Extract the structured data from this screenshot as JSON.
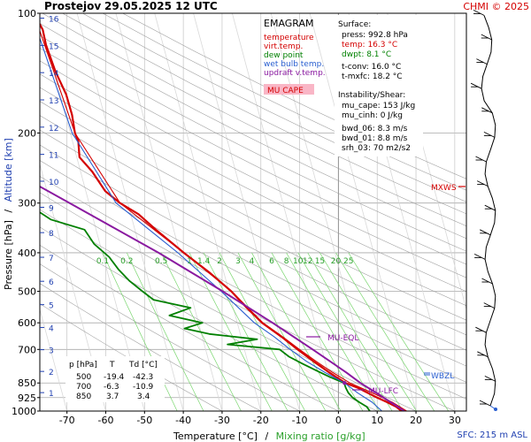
{
  "header": {
    "station": "Prostejov",
    "datetime": "29.05.2025 12 UTC",
    "copyright": "CHMI © 2025"
  },
  "axes": {
    "ylabel_pressure": "Pressure [hPa]",
    "ylabel_sep": "/",
    "ylabel_alt": "Altitude [km]",
    "xlabel_temp": "Temperature [°C]",
    "xlabel_sep": "/",
    "xlabel_mix": "Mixing ratio [g/kg]",
    "sfc_note": "SFC: 215 m ASL"
  },
  "legend": {
    "title": "EMAGRAM",
    "items": [
      {
        "label": "temperature",
        "color": "#d40000"
      },
      {
        "label": "virt.temp.",
        "color": "#d40000"
      },
      {
        "label": "dew point",
        "color": "#008000"
      },
      {
        "label": "wet bulb temp.",
        "color": "#2a5fd0"
      },
      {
        "label": "updraft v.temp.",
        "color": "#8a1aa0"
      }
    ],
    "mu_cape_label": "MU CAPE",
    "mu_cape_bg": "#f9b6c6"
  },
  "info": {
    "surface_title": "Surface:",
    "press": "press: 992.8 hPa",
    "temp": "temp: 16.3 °C",
    "dwpt": "dwpt: 8.1 °C",
    "tconv": "t-conv: 16.0 °C",
    "tmxfc": "t-mxfc: 18.2 °C",
    "instab_title": "Instability/Shear:",
    "mu_cape": "mu_cape: 153 J/kg",
    "mu_cinh": "mu_cinh: 0 J/kg",
    "bwd06": "bwd_06: 8.3 m/s",
    "bwd01": "bwd_01: 8.8 m/s",
    "srh03": "srh_03: 70 m2/s2"
  },
  "levels_table": {
    "headers": [
      "p [hPa]",
      "T",
      "Td [°C]"
    ],
    "rows": [
      [
        "500",
        "-19.4",
        "-42.3"
      ],
      [
        "700",
        "-6.3",
        "-10.9"
      ],
      [
        "850",
        "3.7",
        "3.4"
      ]
    ]
  },
  "annotations": {
    "mxws": "MXWS",
    "mu_eql": "MU-EQL",
    "mu_lfc": "MU-LFC",
    "wbzl": "WBZL"
  },
  "chart_data": {
    "type": "line",
    "x_ticks": [
      -70,
      -60,
      -50,
      -40,
      -30,
      -20,
      -10,
      0,
      10,
      20,
      30
    ],
    "xlim": [
      -77,
      33
    ],
    "p_ticks": [
      100,
      200,
      300,
      400,
      500,
      600,
      700,
      850,
      925,
      1000
    ],
    "ylim_hpa": [
      1000,
      100
    ],
    "y_scale": "log",
    "km_ticks": [
      1,
      2,
      3,
      4,
      5,
      6,
      7,
      8,
      9,
      10,
      11,
      12,
      13,
      14,
      15,
      16
    ],
    "mixing_ratio_labels": [
      "0.1",
      "0.2",
      "0.5",
      "1",
      "1.4",
      "2",
      "3",
      "4",
      "6",
      "8",
      "10",
      "12",
      "15",
      "20",
      "25"
    ],
    "mixing_ratio_values": [
      0.1,
      0.2,
      0.5,
      1,
      1.4,
      2,
      3,
      4,
      6,
      8,
      10,
      12,
      15,
      20,
      25
    ],
    "series": [
      {
        "key": "temperature",
        "color": "#d40000",
        "points": [
          [
            1000,
            16.3
          ],
          [
            975,
            15.2
          ],
          [
            950,
            13.2
          ],
          [
            925,
            10.9
          ],
          [
            900,
            8.8
          ],
          [
            875,
            6.7
          ],
          [
            850,
            3.7
          ],
          [
            800,
            0.3
          ],
          [
            750,
            -3.0
          ],
          [
            700,
            -6.3
          ],
          [
            650,
            -9.6
          ],
          [
            600,
            -13.6
          ],
          [
            550,
            -16.5
          ],
          [
            500,
            -19.4
          ],
          [
            450,
            -23.6
          ],
          [
            400,
            -29.0
          ],
          [
            350,
            -34.6
          ],
          [
            320,
            -38.0
          ],
          [
            300,
            -42.0
          ],
          [
            280,
            -45.0
          ],
          [
            250,
            -47.0
          ],
          [
            230,
            -49.3
          ],
          [
            210,
            -48.5
          ],
          [
            200,
            -48.8
          ],
          [
            180,
            -48.3
          ],
          [
            160,
            -48.4
          ],
          [
            140,
            -49.6
          ],
          [
            120,
            -50.2
          ],
          [
            110,
            -50.0
          ],
          [
            100,
            -51.2
          ]
        ]
      },
      {
        "key": "virt.temp.",
        "color": "#d40000",
        "points": [
          [
            1000,
            17.6
          ],
          [
            950,
            14.5
          ],
          [
            900,
            10.0
          ],
          [
            850,
            4.9
          ],
          [
            800,
            1.2
          ],
          [
            750,
            -2.3
          ],
          [
            700,
            -5.8
          ],
          [
            650,
            -9.3
          ],
          [
            600,
            -13.4
          ],
          [
            500,
            -19.3
          ],
          [
            400,
            -29.0
          ],
          [
            300,
            -42.0
          ],
          [
            200,
            -48.8
          ],
          [
            100,
            -51.2
          ]
        ]
      },
      {
        "key": "dew point",
        "color": "#008000",
        "points": [
          [
            1000,
            8.1
          ],
          [
            975,
            7.6
          ],
          [
            950,
            6.0
          ],
          [
            925,
            4.6
          ],
          [
            900,
            3.8
          ],
          [
            875,
            3.5
          ],
          [
            850,
            3.4
          ],
          [
            820,
            0.0
          ],
          [
            790,
            -3.0
          ],
          [
            760,
            -6.0
          ],
          [
            730,
            -9.0
          ],
          [
            700,
            -10.9
          ],
          [
            680,
            -24.0
          ],
          [
            660,
            -16.0
          ],
          [
            640,
            -28.0
          ],
          [
            620,
            -34.0
          ],
          [
            600,
            -29.0
          ],
          [
            575,
            -37.0
          ],
          [
            550,
            -31.0
          ],
          [
            525,
            -40.0
          ],
          [
            500,
            -42.3
          ],
          [
            470,
            -45.0
          ],
          [
            440,
            -47.0
          ],
          [
            410,
            -48.5
          ],
          [
            380,
            -51.5
          ],
          [
            350,
            -53.0
          ],
          [
            330,
            -61.0
          ],
          [
            310,
            -64.5
          ],
          [
            290,
            -66.0
          ],
          [
            270,
            -69.0
          ],
          [
            255,
            -71.5
          ],
          [
            240,
            -73.0
          ],
          [
            230,
            -76.0
          ],
          [
            220,
            -74.0
          ],
          [
            215,
            -77.0
          ]
        ]
      },
      {
        "key": "wet bulb temp.",
        "color": "#2a5fd0",
        "points": [
          [
            1000,
            11.2
          ],
          [
            950,
            9.3
          ],
          [
            900,
            6.2
          ],
          [
            850,
            3.5
          ],
          [
            800,
            -0.8
          ],
          [
            750,
            -4.8
          ],
          [
            700,
            -8.2
          ],
          [
            650,
            -11.5
          ],
          [
            600,
            -15.6
          ],
          [
            500,
            -22.0
          ],
          [
            400,
            -30.5
          ],
          [
            300,
            -43.0
          ],
          [
            200,
            -49.5
          ],
          [
            100,
            -51.8
          ]
        ]
      },
      {
        "key": "updraft v.temp.",
        "color": "#8a1aa0",
        "points": [
          [
            1000,
            17.0
          ],
          [
            900,
            11.0
          ],
          [
            850,
            7.6
          ],
          [
            800,
            4.7
          ],
          [
            700,
            -2.4
          ],
          [
            600,
            -10.9
          ],
          [
            500,
            -21.6
          ],
          [
            400,
            -35.5
          ],
          [
            300,
            -55.0
          ],
          [
            250,
            -67.5
          ],
          [
            210,
            -80.0
          ]
        ]
      }
    ]
  }
}
